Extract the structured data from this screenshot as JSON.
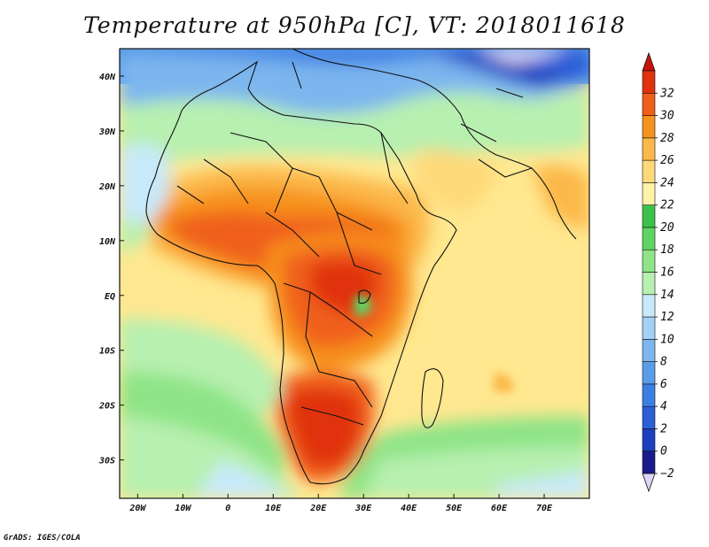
{
  "title": "Temperature at 950hPa [C], VT: 2018011618",
  "credit": "GrADS: IGES/COLA",
  "map": {
    "lon_range": [
      -24,
      80
    ],
    "lat_range": [
      -37,
      45
    ],
    "lon_ticks": [
      {
        "value": -20,
        "label": "20W"
      },
      {
        "value": -10,
        "label": "10W"
      },
      {
        "value": 0,
        "label": "0"
      },
      {
        "value": 10,
        "label": "10E"
      },
      {
        "value": 20,
        "label": "20E"
      },
      {
        "value": 30,
        "label": "30E"
      },
      {
        "value": 40,
        "label": "40E"
      },
      {
        "value": 50,
        "label": "50E"
      },
      {
        "value": 60,
        "label": "60E"
      },
      {
        "value": 70,
        "label": "70E"
      }
    ],
    "lat_ticks": [
      {
        "value": 40,
        "label": "40N"
      },
      {
        "value": 30,
        "label": "30N"
      },
      {
        "value": 20,
        "label": "20N"
      },
      {
        "value": 10,
        "label": "10N"
      },
      {
        "value": 0,
        "label": "EQ"
      },
      {
        "value": -10,
        "label": "10S"
      },
      {
        "value": -20,
        "label": "20S"
      },
      {
        "value": -30,
        "label": "30S"
      }
    ]
  },
  "colorbar": {
    "levels": [
      -2,
      0,
      2,
      4,
      6,
      8,
      10,
      12,
      14,
      16,
      18,
      20,
      22,
      24,
      26,
      28,
      30,
      32
    ],
    "colors": [
      "#1a1a8c",
      "#1c3fbf",
      "#2a5fd6",
      "#3b7fe4",
      "#5a9ce8",
      "#7cb6ee",
      "#a3d0f5",
      "#c8e9fa",
      "#b7f0b0",
      "#8ee486",
      "#5fd462",
      "#3cc24a",
      "#fff3a8",
      "#ffd978",
      "#fcb84a",
      "#f7921f",
      "#f0601a",
      "#e03110"
    ],
    "under_color": "#dcd6f5",
    "over_color": "#c8140c"
  }
}
